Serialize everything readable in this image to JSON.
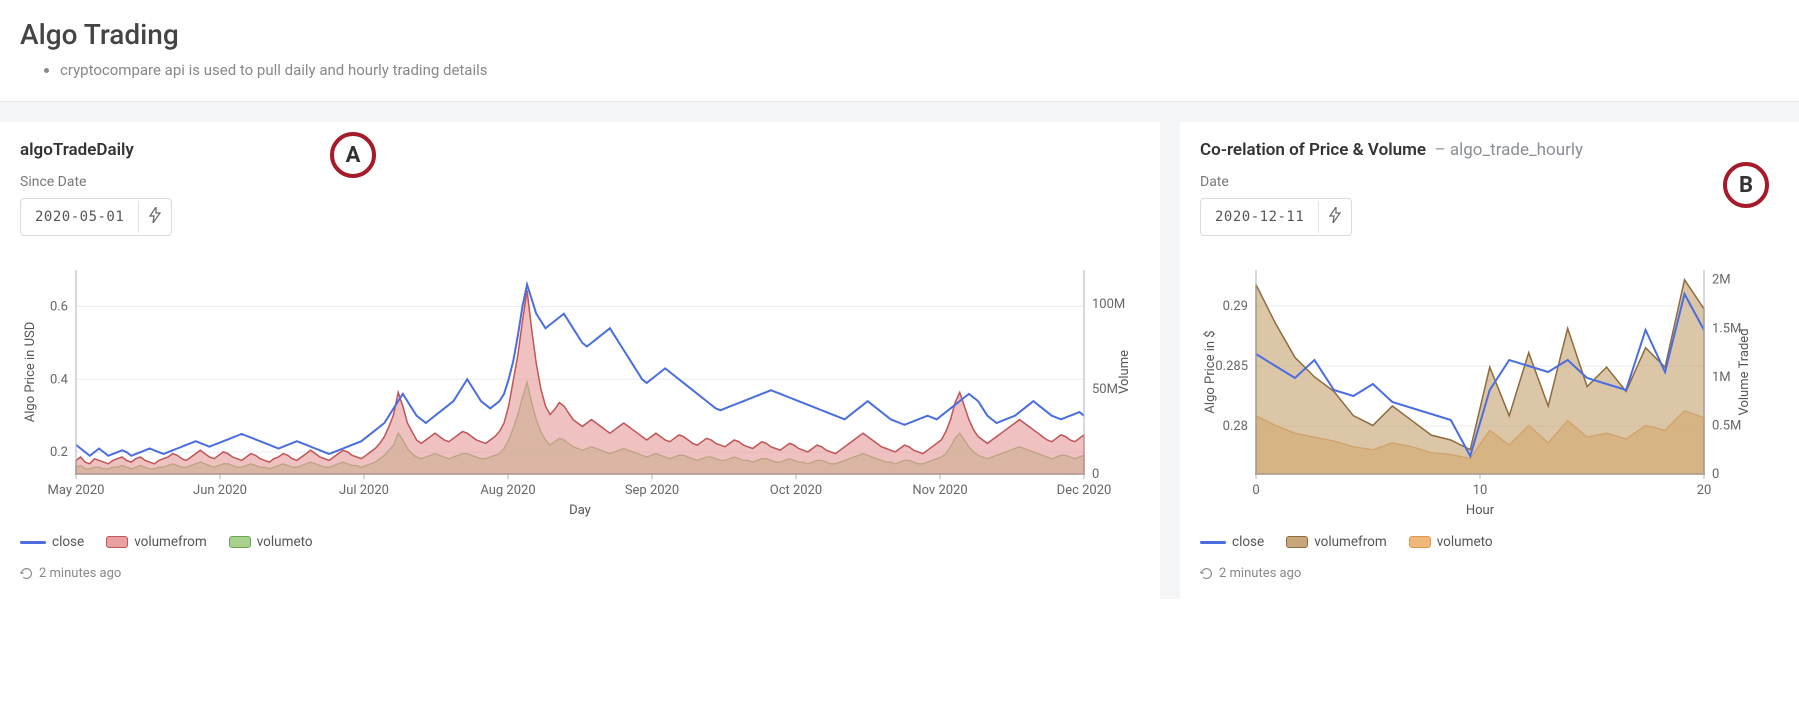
{
  "header": {
    "title": "Algo Trading",
    "bullet": "cryptocompare api is used to pull daily and hourly trading details"
  },
  "panelA": {
    "title": "algoTradeDaily",
    "badge": "A",
    "date_label": "Since Date",
    "date_value": "2020-05-01",
    "timestamp": "2 minutes ago",
    "chart": {
      "type": "line+area-dual-axis",
      "x_axis_label": "Day",
      "y1_axis_label": "Algo Price in USD",
      "y2_axis_label": "Volume",
      "x_ticks": [
        "May 2020",
        "Jun 2020",
        "Jul 2020",
        "Aug 2020",
        "Sep 2020",
        "Oct 2020",
        "Nov 2020",
        "Dec 2020"
      ],
      "y1_ticks": [
        0.2,
        0.4,
        0.6
      ],
      "y1_lim": [
        0.14,
        0.7
      ],
      "y2_ticks": [
        0,
        "50M",
        "100M"
      ],
      "y2_lim": [
        0,
        120000000
      ],
      "n_points": 220,
      "colors": {
        "close_line": "#4a6ee0",
        "volumefrom_fill": "#e8a0a0",
        "volumefrom_stroke": "#c05555",
        "volumeto_fill": "#a9d08e",
        "volumeto_stroke": "#6aa84f",
        "grid": "#e9ecef",
        "axis": "#adb5bd",
        "text": "#666666",
        "background": "#ffffff"
      },
      "legend": [
        {
          "label": "close",
          "type": "line",
          "color": "#4a6ee0"
        },
        {
          "label": "volumefrom",
          "type": "area",
          "color": "#e8a0a0",
          "stroke": "#c05555"
        },
        {
          "label": "volumeto",
          "type": "area",
          "color": "#a9d08e",
          "stroke": "#6aa84f"
        }
      ],
      "series_close": [
        0.22,
        0.21,
        0.2,
        0.19,
        0.2,
        0.21,
        0.2,
        0.19,
        0.195,
        0.2,
        0.205,
        0.2,
        0.19,
        0.195,
        0.2,
        0.205,
        0.21,
        0.205,
        0.2,
        0.195,
        0.2,
        0.205,
        0.21,
        0.215,
        0.22,
        0.225,
        0.23,
        0.225,
        0.22,
        0.215,
        0.22,
        0.225,
        0.23,
        0.235,
        0.24,
        0.245,
        0.25,
        0.245,
        0.24,
        0.235,
        0.23,
        0.225,
        0.22,
        0.215,
        0.21,
        0.215,
        0.22,
        0.225,
        0.23,
        0.225,
        0.22,
        0.215,
        0.21,
        0.205,
        0.2,
        0.195,
        0.2,
        0.205,
        0.21,
        0.215,
        0.22,
        0.225,
        0.23,
        0.24,
        0.25,
        0.26,
        0.27,
        0.28,
        0.3,
        0.32,
        0.34,
        0.36,
        0.34,
        0.32,
        0.3,
        0.29,
        0.28,
        0.29,
        0.3,
        0.31,
        0.32,
        0.33,
        0.34,
        0.36,
        0.38,
        0.4,
        0.38,
        0.36,
        0.34,
        0.33,
        0.32,
        0.33,
        0.34,
        0.36,
        0.4,
        0.45,
        0.52,
        0.6,
        0.66,
        0.62,
        0.58,
        0.56,
        0.54,
        0.55,
        0.56,
        0.57,
        0.58,
        0.56,
        0.54,
        0.52,
        0.5,
        0.49,
        0.5,
        0.51,
        0.52,
        0.53,
        0.54,
        0.52,
        0.5,
        0.48,
        0.46,
        0.44,
        0.42,
        0.4,
        0.39,
        0.4,
        0.41,
        0.42,
        0.43,
        0.42,
        0.41,
        0.4,
        0.39,
        0.38,
        0.37,
        0.36,
        0.35,
        0.34,
        0.33,
        0.32,
        0.315,
        0.32,
        0.325,
        0.33,
        0.335,
        0.34,
        0.345,
        0.35,
        0.355,
        0.36,
        0.365,
        0.37,
        0.365,
        0.36,
        0.355,
        0.35,
        0.345,
        0.34,
        0.335,
        0.33,
        0.325,
        0.32,
        0.315,
        0.31,
        0.305,
        0.3,
        0.295,
        0.29,
        0.3,
        0.31,
        0.32,
        0.33,
        0.34,
        0.33,
        0.32,
        0.31,
        0.3,
        0.29,
        0.285,
        0.28,
        0.275,
        0.28,
        0.285,
        0.29,
        0.295,
        0.3,
        0.295,
        0.29,
        0.3,
        0.31,
        0.32,
        0.33,
        0.34,
        0.35,
        0.36,
        0.35,
        0.34,
        0.32,
        0.3,
        0.29,
        0.28,
        0.285,
        0.29,
        0.295,
        0.3,
        0.31,
        0.32,
        0.33,
        0.34,
        0.33,
        0.32,
        0.31,
        0.3,
        0.295,
        0.29,
        0.295,
        0.3,
        0.305,
        0.31,
        0.3
      ],
      "series_volumefrom": [
        8,
        10,
        7,
        6,
        9,
        8,
        7,
        6,
        8,
        9,
        10,
        8,
        7,
        9,
        10,
        8,
        7,
        6,
        8,
        9,
        10,
        12,
        11,
        9,
        8,
        10,
        12,
        14,
        12,
        10,
        9,
        11,
        13,
        12,
        10,
        9,
        8,
        10,
        12,
        11,
        9,
        8,
        7,
        9,
        10,
        12,
        11,
        9,
        8,
        10,
        12,
        14,
        12,
        10,
        9,
        8,
        10,
        12,
        14,
        13,
        11,
        10,
        9,
        11,
        13,
        15,
        18,
        22,
        28,
        35,
        48,
        40,
        30,
        25,
        20,
        18,
        20,
        22,
        24,
        22,
        20,
        19,
        21,
        23,
        25,
        24,
        22,
        20,
        19,
        18,
        20,
        22,
        25,
        30,
        40,
        55,
        70,
        90,
        108,
        85,
        65,
        50,
        40,
        35,
        38,
        42,
        40,
        36,
        32,
        30,
        28,
        30,
        32,
        30,
        28,
        26,
        24,
        26,
        28,
        30,
        28,
        26,
        24,
        22,
        20,
        22,
        24,
        22,
        20,
        19,
        21,
        23,
        22,
        20,
        18,
        17,
        19,
        21,
        20,
        18,
        17,
        16,
        18,
        20,
        19,
        17,
        16,
        15,
        17,
        19,
        18,
        16,
        15,
        14,
        16,
        18,
        17,
        15,
        14,
        13,
        15,
        17,
        16,
        14,
        13,
        12,
        14,
        16,
        18,
        20,
        22,
        24,
        22,
        20,
        18,
        16,
        15,
        14,
        13,
        15,
        17,
        16,
        14,
        13,
        12,
        14,
        16,
        18,
        20,
        25,
        32,
        42,
        48,
        40,
        32,
        26,
        22,
        20,
        18,
        20,
        22,
        24,
        26,
        28,
        30,
        32,
        30,
        28,
        26,
        24,
        22,
        20,
        19,
        21,
        23,
        22,
        20,
        19,
        21,
        23
      ],
      "series_volumeto": [
        4,
        5,
        3,
        3,
        4,
        4,
        3,
        3,
        4,
        4,
        5,
        4,
        3,
        4,
        5,
        4,
        3,
        3,
        4,
        4,
        5,
        6,
        5,
        4,
        4,
        5,
        6,
        7,
        6,
        5,
        4,
        5,
        6,
        6,
        5,
        4,
        4,
        5,
        6,
        5,
        4,
        4,
        3,
        4,
        5,
        6,
        5,
        4,
        4,
        5,
        6,
        7,
        6,
        5,
        4,
        4,
        5,
        6,
        7,
        6,
        5,
        5,
        4,
        5,
        6,
        7,
        9,
        11,
        14,
        17,
        24,
        20,
        15,
        12,
        10,
        9,
        10,
        11,
        12,
        11,
        10,
        9,
        10,
        11,
        12,
        12,
        11,
        10,
        9,
        9,
        10,
        11,
        12,
        15,
        20,
        27,
        35,
        45,
        54,
        42,
        32,
        25,
        20,
        17,
        19,
        21,
        20,
        18,
        16,
        15,
        14,
        15,
        16,
        15,
        14,
        13,
        12,
        13,
        14,
        15,
        14,
        13,
        12,
        11,
        10,
        11,
        12,
        11,
        10,
        9,
        10,
        11,
        11,
        10,
        9,
        8,
        9,
        10,
        10,
        9,
        8,
        8,
        9,
        10,
        9,
        8,
        8,
        7,
        8,
        9,
        9,
        8,
        7,
        7,
        8,
        9,
        8,
        7,
        7,
        6,
        7,
        8,
        8,
        7,
        6,
        6,
        7,
        8,
        9,
        10,
        11,
        12,
        11,
        10,
        9,
        8,
        7,
        7,
        6,
        7,
        8,
        8,
        7,
        6,
        6,
        7,
        8,
        9,
        10,
        12,
        16,
        21,
        24,
        20,
        16,
        13,
        11,
        10,
        9,
        10,
        11,
        12,
        13,
        14,
        15,
        16,
        15,
        14,
        13,
        12,
        11,
        10,
        9,
        10,
        11,
        11,
        10,
        9,
        10,
        11
      ]
    }
  },
  "panelB": {
    "title": "Co-relation of Price & Volume",
    "subtitle": "algo_trade_hourly",
    "badge": "B",
    "date_label": "Date",
    "date_value": "2020-12-11",
    "timestamp": "2 minutes ago",
    "chart": {
      "type": "line+area-dual-axis",
      "x_axis_label": "Hour",
      "y1_axis_label": "Algo Price in $",
      "y2_axis_label": "Volume Traded",
      "x_ticks": [
        0,
        10,
        20
      ],
      "y1_ticks": [
        0.28,
        0.285,
        0.29
      ],
      "y1_lim": [
        0.276,
        0.293
      ],
      "y2_ticks": [
        0,
        "0.5M",
        "1M",
        "1.5M",
        "2M"
      ],
      "y2_lim": [
        0,
        2100000
      ],
      "n_points": 24,
      "colors": {
        "close_line": "#4a6ee0",
        "volumefrom_fill": "#c8a878",
        "volumefrom_stroke": "#8e6b3e",
        "volumeto_fill": "#f0b878",
        "volumeto_stroke": "#e09850",
        "grid": "#e9ecef",
        "axis": "#adb5bd",
        "text": "#666666",
        "background": "#ffffff"
      },
      "legend": [
        {
          "label": "close",
          "type": "line",
          "color": "#4a6ee0"
        },
        {
          "label": "volumefrom",
          "type": "area",
          "color": "#c8a878",
          "stroke": "#8e6b3e"
        },
        {
          "label": "volumeto",
          "type": "area",
          "color": "#f0b878",
          "stroke": "#e09850"
        }
      ],
      "series_close": [
        0.286,
        0.285,
        0.284,
        0.2855,
        0.283,
        0.2825,
        0.2835,
        0.282,
        0.2815,
        0.281,
        0.2805,
        0.2775,
        0.283,
        0.2855,
        0.285,
        0.2845,
        0.2855,
        0.284,
        0.2835,
        0.283,
        0.288,
        0.2845,
        0.291,
        0.288
      ],
      "series_volumefrom": [
        1.95,
        1.55,
        1.2,
        1.0,
        0.85,
        0.6,
        0.5,
        0.7,
        0.55,
        0.4,
        0.35,
        0.25,
        1.1,
        0.6,
        1.25,
        0.7,
        1.5,
        0.9,
        1.1,
        0.85,
        1.3,
        1.1,
        2.0,
        1.7
      ],
      "series_volumeto": [
        0.6,
        0.5,
        0.42,
        0.38,
        0.34,
        0.28,
        0.25,
        0.32,
        0.28,
        0.22,
        0.2,
        0.16,
        0.45,
        0.3,
        0.5,
        0.32,
        0.55,
        0.38,
        0.42,
        0.36,
        0.5,
        0.45,
        0.65,
        0.58
      ]
    }
  }
}
